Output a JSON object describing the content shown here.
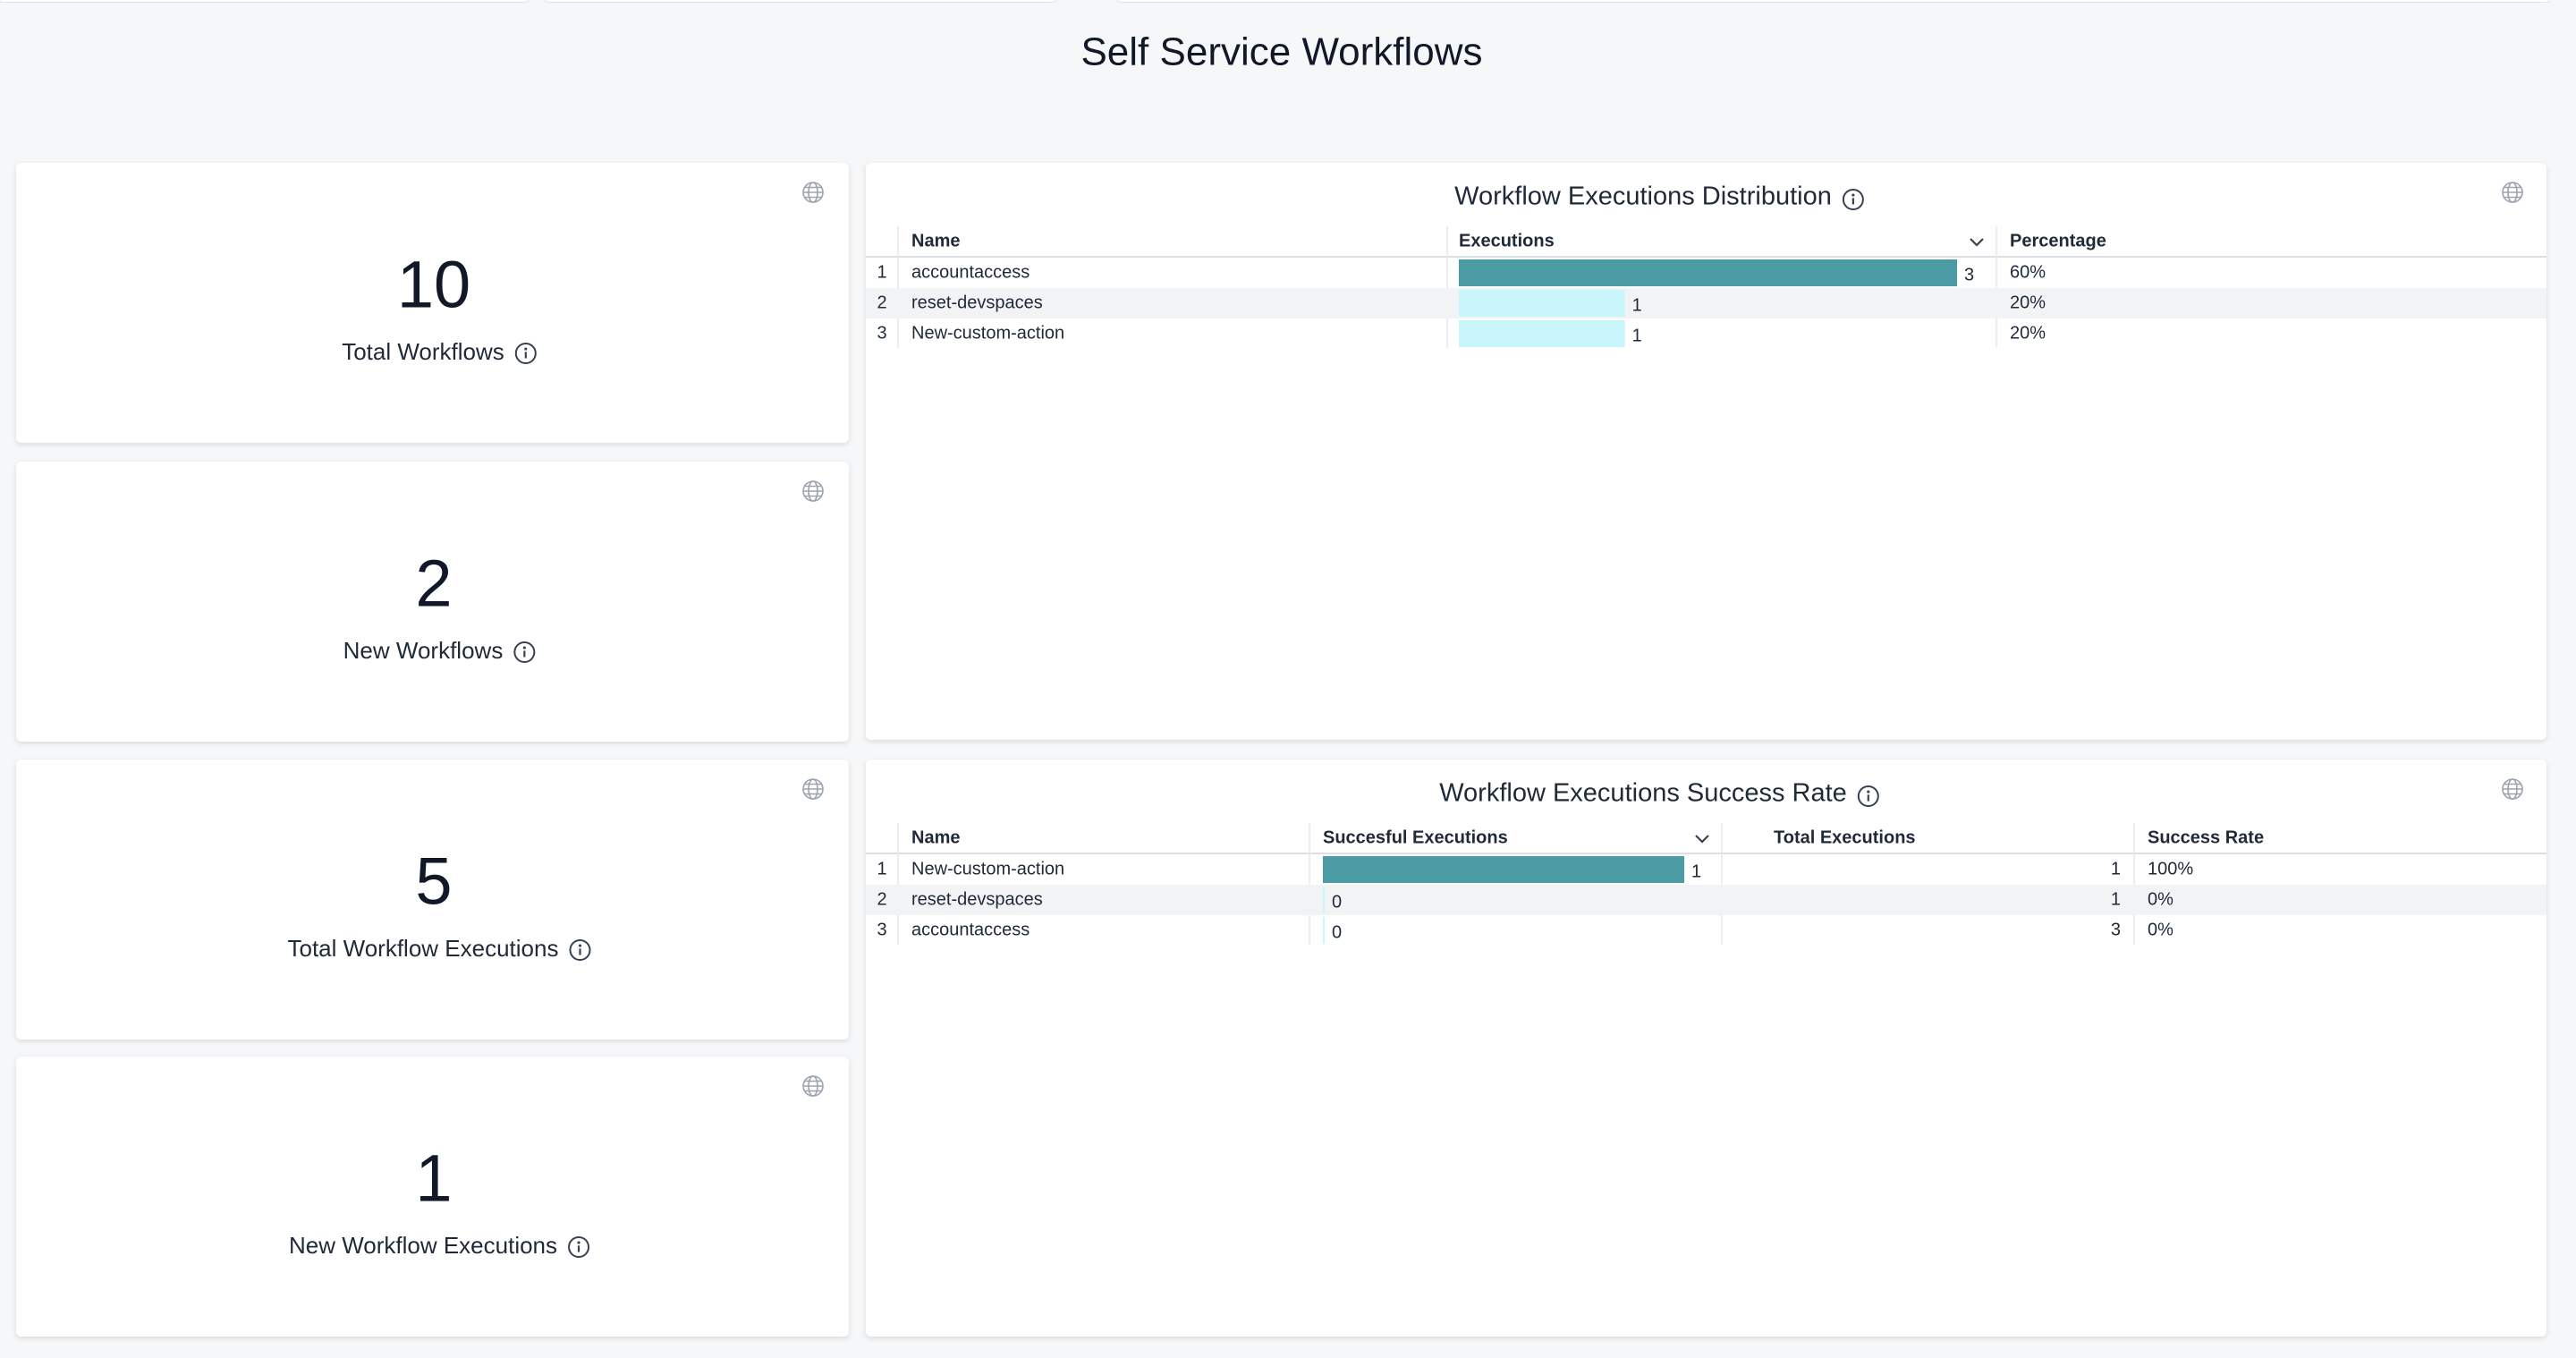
{
  "title": "Self Service Workflows",
  "kpis": [
    {
      "value": 10,
      "label": "Total Workflows"
    },
    {
      "value": 2,
      "label": "New Workflows"
    },
    {
      "value": 5,
      "label": "Total Workflow Executions"
    },
    {
      "value": 1,
      "label": "New Workflow Executions"
    }
  ],
  "bar_color": "#4a9ba3",
  "bar_color_light": "#c9f6fb",
  "tables": [
    {
      "title": "Workflow Executions Distribution",
      "columns": [
        "Name",
        "Executions",
        "Percentage"
      ],
      "rows": [
        [
          1,
          "accountaccess",
          3,
          "60%"
        ],
        [
          2,
          "reset-devspaces",
          1,
          "20%"
        ],
        [
          3,
          "New-custom-action",
          1,
          "20%"
        ]
      ]
    },
    {
      "title": "Workflow Executions Success Rate",
      "columns": [
        "Name",
        "Succesful Executions",
        "Total Executions",
        "Success Rate"
      ],
      "rows": [
        [
          1,
          "New-custom-action",
          1,
          1,
          "100%"
        ],
        [
          2,
          "reset-devspaces",
          0,
          1,
          "0%"
        ],
        [
          3,
          "accountaccess",
          0,
          3,
          "0%"
        ]
      ]
    }
  ]
}
